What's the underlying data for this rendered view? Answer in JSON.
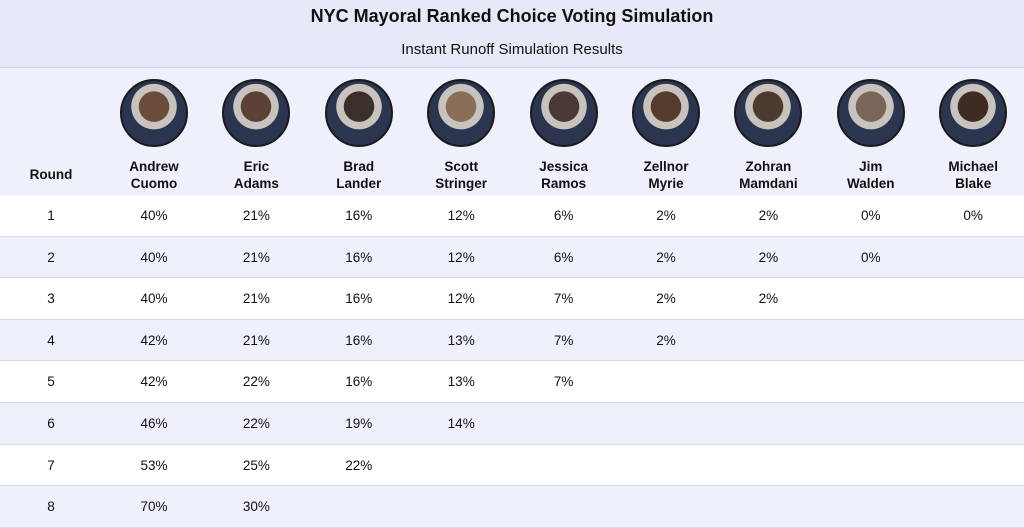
{
  "header": {
    "title": "NYC Mayoral Ranked Choice Voting Simulation",
    "subtitle": "Instant Runoff Simulation Results"
  },
  "table": {
    "round_header": "Round",
    "candidates": [
      {
        "first": "Andrew",
        "last": "Cuomo"
      },
      {
        "first": "Eric",
        "last": "Adams"
      },
      {
        "first": "Brad",
        "last": "Lander"
      },
      {
        "first": "Scott",
        "last": "Stringer"
      },
      {
        "first": "Jessica",
        "last": "Ramos"
      },
      {
        "first": "Zellnor",
        "last": "Myrie"
      },
      {
        "first": "Zohran",
        "last": "Mamdani"
      },
      {
        "first": "Jim",
        "last": "Walden"
      },
      {
        "first": "Michael",
        "last": "Blake"
      }
    ],
    "rows": [
      {
        "round": "1",
        "cells": [
          "40%",
          "21%",
          "16%",
          "12%",
          "6%",
          "2%",
          "2%",
          "0%",
          "0%"
        ]
      },
      {
        "round": "2",
        "cells": [
          "40%",
          "21%",
          "16%",
          "12%",
          "6%",
          "2%",
          "2%",
          "0%"
        ]
      },
      {
        "round": "3",
        "cells": [
          "40%",
          "21%",
          "16%",
          "12%",
          "7%",
          "2%",
          "2%"
        ]
      },
      {
        "round": "4",
        "cells": [
          "42%",
          "21%",
          "16%",
          "13%",
          "7%",
          "2%"
        ]
      },
      {
        "round": "5",
        "cells": [
          "42%",
          "22%",
          "16%",
          "13%",
          "7%"
        ]
      },
      {
        "round": "6",
        "cells": [
          "46%",
          "22%",
          "19%",
          "14%"
        ]
      },
      {
        "round": "7",
        "cells": [
          "53%",
          "25%",
          "22%"
        ]
      },
      {
        "round": "8",
        "cells": [
          "70%",
          "30%"
        ]
      }
    ]
  }
}
